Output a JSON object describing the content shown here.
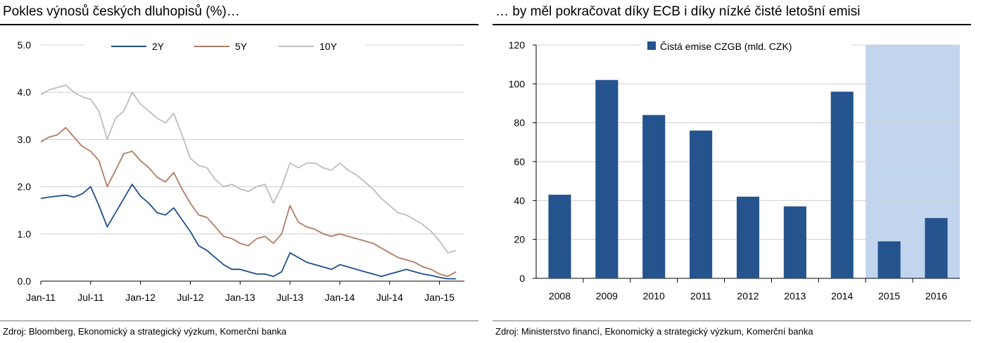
{
  "left": {
    "title": "Pokles výnosů českých dluhopisů (%)…",
    "source": "Zdroj: Bloomberg, Ekonomický a strategický výzkum, Komerční banka"
  },
  "right": {
    "title": "… by měl pokračovat díky ECB i díky nízké čisté letošní emisi",
    "source": "Zdroj: Ministerstvo financí, Ekonomický a strategický výzkum, Komerční banka"
  },
  "chart_data": [
    {
      "type": "line",
      "title": "Pokles výnosů českých dluhopisů (%)…",
      "x_ticks": [
        "Jan-11",
        "Jul-11",
        "Jan-12",
        "Jul-12",
        "Jan-13",
        "Jul-13",
        "Jan-14",
        "Jul-14",
        "Jan-15"
      ],
      "y_ticks": [
        "0.0",
        "1.0",
        "2.0",
        "3.0",
        "4.0",
        "5.0"
      ],
      "ylim": [
        0,
        5
      ],
      "grid": true,
      "legend": "top",
      "colors": {
        "2Y": "#1f4e8c",
        "5Y": "#b07c64",
        "10Y": "#bdbdbd"
      },
      "series": [
        {
          "name": "2Y",
          "x": [
            "2011-01",
            "2011-02",
            "2011-03",
            "2011-04",
            "2011-05",
            "2011-06",
            "2011-07",
            "2011-08",
            "2011-09",
            "2011-10",
            "2011-11",
            "2011-12",
            "2012-01",
            "2012-02",
            "2012-03",
            "2012-04",
            "2012-05",
            "2012-06",
            "2012-07",
            "2012-08",
            "2012-09",
            "2012-10",
            "2012-11",
            "2012-12",
            "2013-01",
            "2013-02",
            "2013-03",
            "2013-04",
            "2013-05",
            "2013-06",
            "2013-07",
            "2013-08",
            "2013-09",
            "2013-10",
            "2013-11",
            "2013-12",
            "2014-01",
            "2014-02",
            "2014-03",
            "2014-04",
            "2014-05",
            "2014-06",
            "2014-07",
            "2014-08",
            "2014-09",
            "2014-10",
            "2014-11",
            "2014-12",
            "2015-01",
            "2015-02",
            "2015-03"
          ],
          "values": [
            1.75,
            1.78,
            1.8,
            1.82,
            1.78,
            1.85,
            2.0,
            1.6,
            1.15,
            1.45,
            1.75,
            2.05,
            1.8,
            1.65,
            1.45,
            1.4,
            1.55,
            1.3,
            1.05,
            0.75,
            0.65,
            0.5,
            0.35,
            0.25,
            0.25,
            0.2,
            0.15,
            0.15,
            0.1,
            0.2,
            0.6,
            0.5,
            0.4,
            0.35,
            0.3,
            0.25,
            0.35,
            0.3,
            0.25,
            0.2,
            0.15,
            0.1,
            0.15,
            0.2,
            0.25,
            0.2,
            0.15,
            0.12,
            0.08,
            0.05,
            0.05
          ]
        },
        {
          "name": "5Y",
          "x": [
            "2011-01",
            "2011-02",
            "2011-03",
            "2011-04",
            "2011-05",
            "2011-06",
            "2011-07",
            "2011-08",
            "2011-09",
            "2011-10",
            "2011-11",
            "2011-12",
            "2012-01",
            "2012-02",
            "2012-03",
            "2012-04",
            "2012-05",
            "2012-06",
            "2012-07",
            "2012-08",
            "2012-09",
            "2012-10",
            "2012-11",
            "2012-12",
            "2013-01",
            "2013-02",
            "2013-03",
            "2013-04",
            "2013-05",
            "2013-06",
            "2013-07",
            "2013-08",
            "2013-09",
            "2013-10",
            "2013-11",
            "2013-12",
            "2014-01",
            "2014-02",
            "2014-03",
            "2014-04",
            "2014-05",
            "2014-06",
            "2014-07",
            "2014-08",
            "2014-09",
            "2014-10",
            "2014-11",
            "2014-12",
            "2015-01",
            "2015-02",
            "2015-03"
          ],
          "values": [
            2.95,
            3.05,
            3.1,
            3.25,
            3.05,
            2.85,
            2.75,
            2.55,
            2.0,
            2.35,
            2.7,
            2.75,
            2.55,
            2.4,
            2.2,
            2.1,
            2.3,
            1.95,
            1.65,
            1.4,
            1.35,
            1.15,
            0.95,
            0.9,
            0.8,
            0.75,
            0.9,
            0.95,
            0.8,
            1.0,
            1.6,
            1.25,
            1.15,
            1.1,
            1.0,
            0.95,
            1.0,
            0.95,
            0.9,
            0.85,
            0.8,
            0.7,
            0.6,
            0.5,
            0.45,
            0.4,
            0.3,
            0.25,
            0.15,
            0.1,
            0.2
          ]
        },
        {
          "name": "10Y",
          "x": [
            "2011-01",
            "2011-02",
            "2011-03",
            "2011-04",
            "2011-05",
            "2011-06",
            "2011-07",
            "2011-08",
            "2011-09",
            "2011-10",
            "2011-11",
            "2011-12",
            "2012-01",
            "2012-02",
            "2012-03",
            "2012-04",
            "2012-05",
            "2012-06",
            "2012-07",
            "2012-08",
            "2012-09",
            "2012-10",
            "2012-11",
            "2012-12",
            "2013-01",
            "2013-02",
            "2013-03",
            "2013-04",
            "2013-05",
            "2013-06",
            "2013-07",
            "2013-08",
            "2013-09",
            "2013-10",
            "2013-11",
            "2013-12",
            "2014-01",
            "2014-02",
            "2014-03",
            "2014-04",
            "2014-05",
            "2014-06",
            "2014-07",
            "2014-08",
            "2014-09",
            "2014-10",
            "2014-11",
            "2014-12",
            "2015-01",
            "2015-02",
            "2015-03"
          ],
          "values": [
            3.95,
            4.05,
            4.1,
            4.15,
            4.0,
            3.9,
            3.85,
            3.6,
            3.0,
            3.45,
            3.6,
            4.0,
            3.75,
            3.6,
            3.45,
            3.35,
            3.55,
            3.1,
            2.6,
            2.45,
            2.4,
            2.15,
            2.0,
            2.05,
            1.95,
            1.9,
            2.0,
            2.05,
            1.65,
            2.0,
            2.5,
            2.4,
            2.5,
            2.5,
            2.4,
            2.35,
            2.5,
            2.35,
            2.25,
            2.1,
            1.95,
            1.75,
            1.6,
            1.45,
            1.4,
            1.3,
            1.2,
            1.05,
            0.85,
            0.6,
            0.65
          ]
        }
      ]
    },
    {
      "type": "bar",
      "categories": [
        "2008",
        "2009",
        "2010",
        "2011",
        "2012",
        "2013",
        "2014",
        "2015",
        "2016"
      ],
      "series": [
        {
          "name": "Čistá emise CZGB (mld. CZK)",
          "values": [
            43,
            102,
            84,
            76,
            42,
            37,
            96,
            19,
            31
          ]
        }
      ],
      "y_ticks": [
        "0",
        "20",
        "40",
        "60",
        "80",
        "100",
        "120"
      ],
      "ylim": [
        0,
        120
      ],
      "grid": true,
      "legend": "top",
      "colors": {
        "bar": "#24538e",
        "forecast_band": "#c2d5ee"
      },
      "forecast_categories": [
        "2015",
        "2016"
      ]
    }
  ]
}
